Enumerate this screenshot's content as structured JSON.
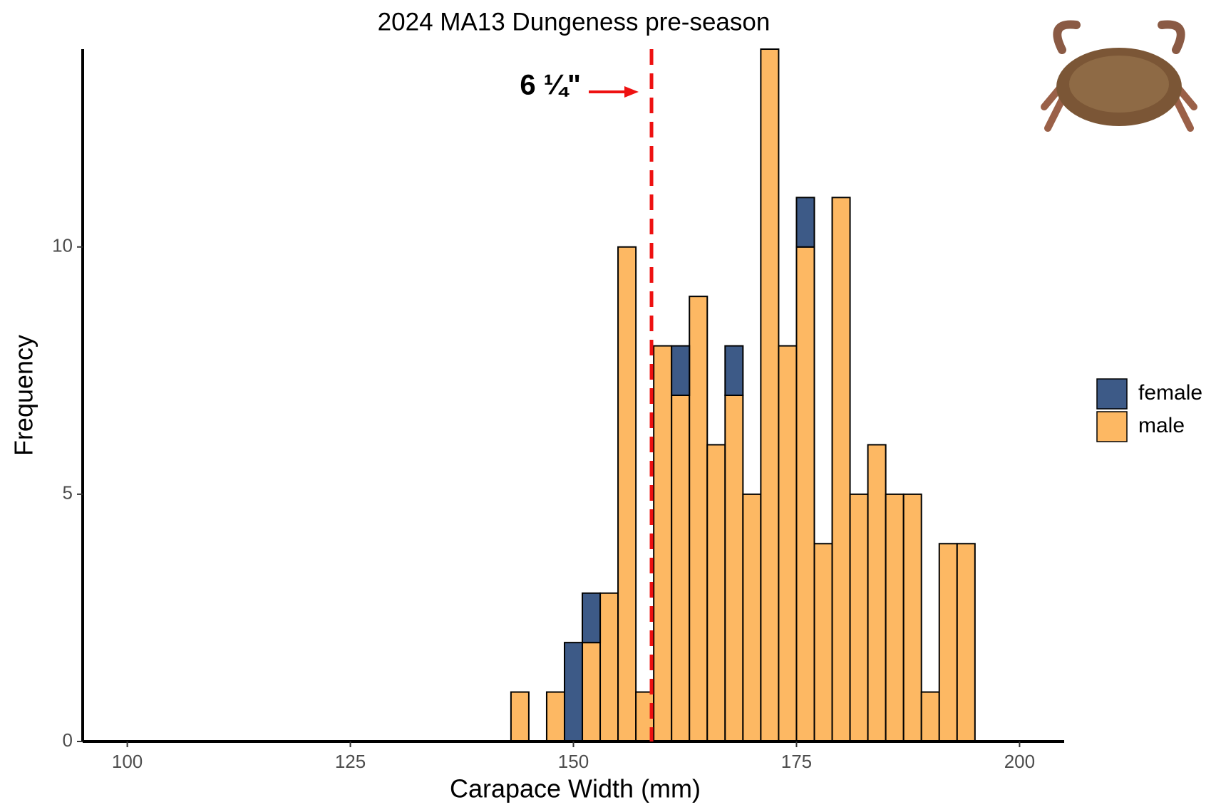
{
  "chart_data": {
    "type": "histogram",
    "title": "2024 MA13 Dungeness pre-season",
    "xlabel": "Carapace Width (mm)",
    "ylabel": "Frequency",
    "bins": [
      143,
      145,
      147,
      149,
      151,
      153,
      155,
      157,
      159,
      161,
      163,
      165,
      167,
      169,
      171,
      173,
      175,
      177,
      179,
      181,
      183,
      185,
      187,
      189,
      191,
      193,
      195
    ],
    "series": [
      {
        "name": "female",
        "color": "#3d5a87",
        "values": [
          0,
          0,
          0,
          2,
          1,
          0,
          0,
          0,
          0,
          1,
          0,
          0,
          1,
          0,
          0,
          0,
          1,
          0,
          0,
          0,
          0,
          0,
          0,
          0,
          0,
          0
        ]
      },
      {
        "name": "male",
        "color": "#fdb863",
        "values": [
          1,
          0,
          1,
          0,
          2,
          3,
          10,
          1,
          8,
          7,
          9,
          6,
          7,
          5,
          14,
          8,
          10,
          4,
          11,
          5,
          6,
          5,
          5,
          1,
          4,
          4
        ]
      }
    ],
    "xlim": [
      95,
      205
    ],
    "xticks": [
      100,
      125,
      150,
      175,
      200
    ],
    "ylim": [
      0,
      14
    ],
    "yticks": [
      0,
      5,
      10
    ],
    "annotation": {
      "label": "6 ¼\"",
      "value": 158.75,
      "color": "#ee1111"
    },
    "legend": "right"
  }
}
